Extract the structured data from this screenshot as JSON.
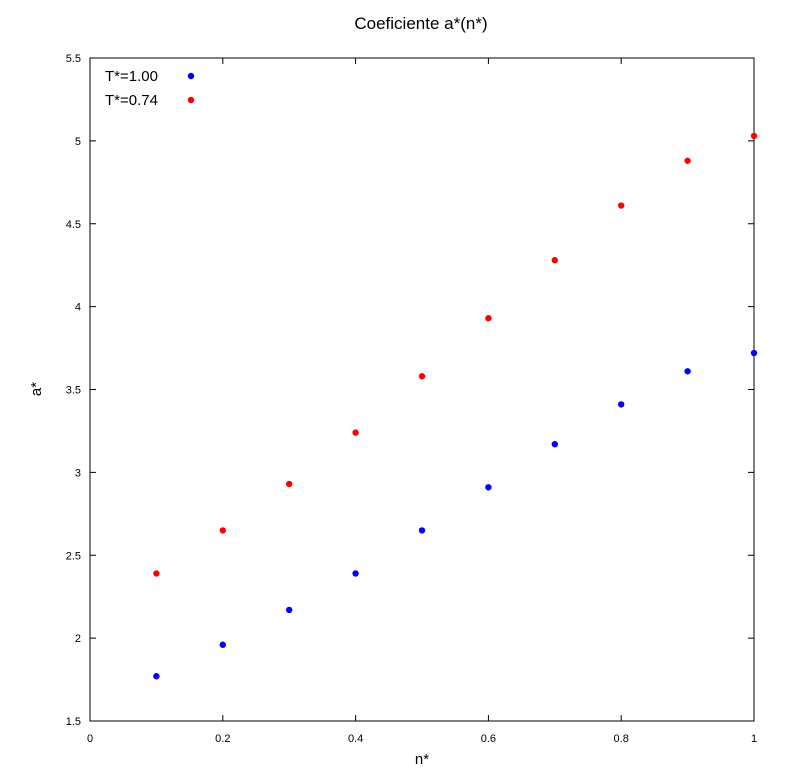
{
  "chart_data": {
    "type": "scatter",
    "title": "Coeficiente a*(n*)",
    "xlabel": "n*",
    "ylabel": "a*",
    "xlim": [
      0,
      1
    ],
    "ylim": [
      1.5,
      5.5
    ],
    "xticks": [
      0,
      0.2,
      0.4,
      0.6,
      0.8,
      1
    ],
    "xtick_labels": [
      "0",
      "0.2",
      "0.4",
      "0.6",
      "0.8",
      "1"
    ],
    "yticks": [
      1.5,
      2,
      2.5,
      3,
      3.5,
      4,
      4.5,
      5,
      5.5
    ],
    "ytick_labels": [
      "1.5",
      "2",
      "2.5",
      "3",
      "3.5",
      "4",
      "4.5",
      "5",
      "5.5"
    ],
    "grid": false,
    "legend_position": "top-left",
    "series": [
      {
        "name": "T*=1.00",
        "color": "#0000ff",
        "x": [
          0.1,
          0.2,
          0.3,
          0.4,
          0.5,
          0.6,
          0.7,
          0.8,
          0.9,
          1.0
        ],
        "y": [
          1.77,
          1.96,
          2.17,
          2.39,
          2.65,
          2.91,
          3.17,
          3.41,
          3.61,
          3.72
        ]
      },
      {
        "name": "T*=0.74",
        "color": "#ff0000",
        "x": [
          0.1,
          0.2,
          0.3,
          0.4,
          0.5,
          0.6,
          0.7,
          0.8,
          0.9,
          1.0
        ],
        "y": [
          2.39,
          2.65,
          2.93,
          3.24,
          3.58,
          3.93,
          4.28,
          4.61,
          4.88,
          5.03
        ]
      }
    ]
  }
}
